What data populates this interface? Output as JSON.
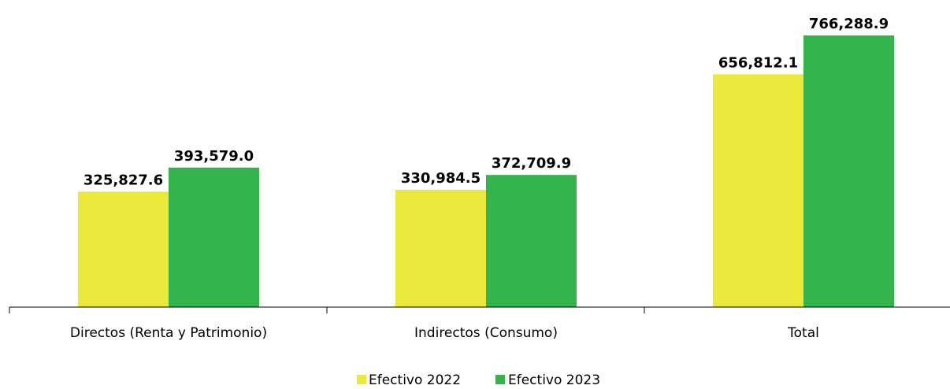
{
  "chart_data": {
    "type": "bar",
    "categories": [
      "Directos (Renta y Patrimonio)",
      "Indirectos (Consumo)",
      "Total"
    ],
    "series": [
      {
        "name": "Efectivo 2022",
        "color": "#EBE83C",
        "values": [
          325827.6,
          330984.5,
          656812.1
        ]
      },
      {
        "name": "Efectivo 2023",
        "color": "#32B34B",
        "values": [
          393579.0,
          372709.9,
          766288.9
        ]
      }
    ],
    "data_labels": [
      [
        "325,827.6",
        "330,984.5",
        "656,812.1"
      ],
      [
        "393,579.0",
        "372,709.9",
        "766,288.9"
      ]
    ],
    "ylim": [
      0,
      800000
    ],
    "legend_position": "bottom",
    "grid": false,
    "axis_color": "#000000"
  }
}
